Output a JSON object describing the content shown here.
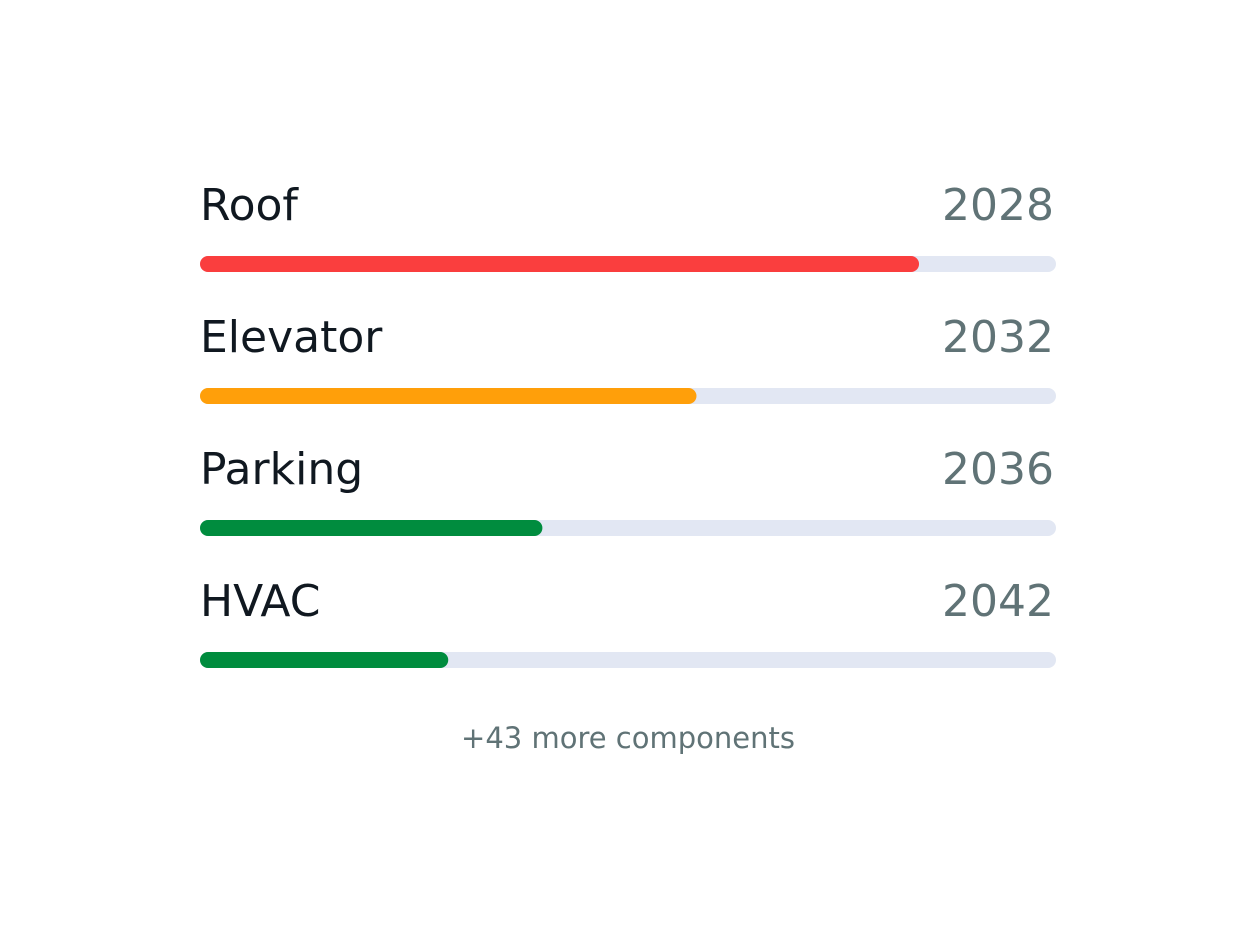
{
  "components": {
    "items": [
      {
        "name": "Roof",
        "year": 2028,
        "progress": 84,
        "color": "#fa3e3e"
      },
      {
        "name": "Elevator",
        "year": 2032,
        "progress": 58,
        "color": "#ff9f0a"
      },
      {
        "name": "Parking",
        "year": 2036,
        "progress": 40,
        "color": "#008c3e"
      },
      {
        "name": "HVAC",
        "year": 2042,
        "progress": 29,
        "color": "#008c3e"
      }
    ],
    "more": "+43 more components"
  }
}
